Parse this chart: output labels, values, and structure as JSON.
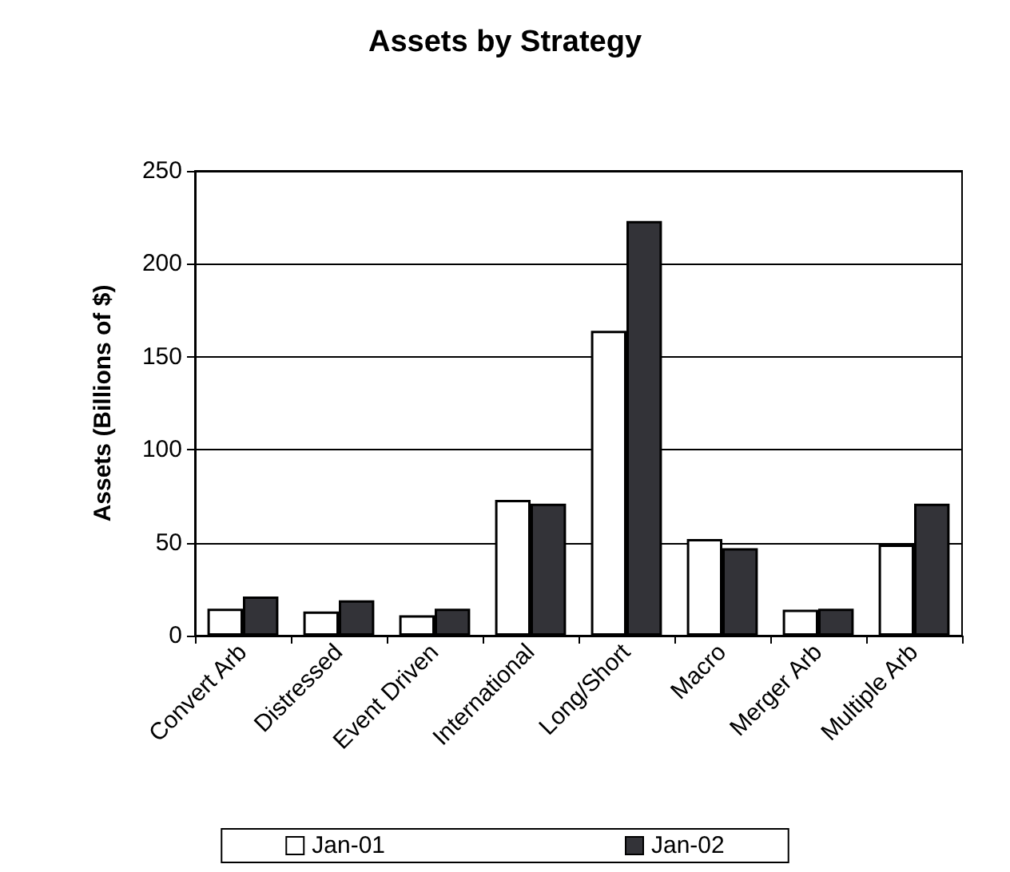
{
  "chart_data": {
    "type": "bar",
    "title": "Assets by Strategy",
    "ylabel": "Assets (Billions of $)",
    "categories": [
      "Convert Arb",
      "Distressed",
      "Event Driven",
      "International",
      "Long/Short",
      "Macro",
      "Merger Arb",
      "Multiple Arb"
    ],
    "series": [
      {
        "name": "Jan-01",
        "color": "#ffffff",
        "values": [
          14.5,
          13,
          11,
          73,
          164,
          52,
          14,
          49
        ]
      },
      {
        "name": "Jan-02",
        "color": "#333338",
        "values": [
          21,
          19,
          14.5,
          71,
          223,
          47,
          14.5,
          71
        ]
      }
    ],
    "ylim": [
      0,
      250
    ],
    "yticks": [
      0,
      50,
      100,
      150,
      200,
      250
    ],
    "grid": "y",
    "legend": "bottom"
  }
}
